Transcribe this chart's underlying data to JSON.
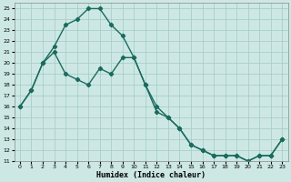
{
  "xlabel": "Humidex (Indice chaleur)",
  "bg_color": "#cde8e4",
  "grid_color": "#a8cec9",
  "line_color": "#1a6b5e",
  "xlim": [
    -0.5,
    23.5
  ],
  "ylim": [
    11,
    25.5
  ],
  "xticks": [
    0,
    1,
    2,
    3,
    4,
    5,
    6,
    7,
    8,
    9,
    10,
    11,
    12,
    13,
    14,
    15,
    16,
    17,
    18,
    19,
    20,
    21,
    22,
    23
  ],
  "yticks": [
    11,
    12,
    13,
    14,
    15,
    16,
    17,
    18,
    19,
    20,
    21,
    22,
    23,
    24,
    25
  ],
  "curve1_x": [
    0,
    1,
    2,
    3,
    4,
    5,
    6,
    7,
    8,
    9,
    10,
    11,
    12,
    13,
    14,
    15,
    16,
    17,
    18,
    19,
    20,
    21,
    22,
    23
  ],
  "curve1_y": [
    16,
    17.5,
    20,
    21.5,
    23.5,
    24,
    25,
    25,
    23.5,
    22.5,
    20.5,
    18,
    15.5,
    15,
    14,
    12.5,
    12,
    11.5,
    11.5,
    11.5,
    11,
    11.5,
    11.5,
    13
  ],
  "curve2_x": [
    0,
    1,
    2,
    3,
    4,
    5,
    6,
    7,
    8,
    9,
    10,
    11,
    12,
    13,
    14,
    15,
    16,
    17,
    18,
    19,
    20,
    21,
    22,
    23
  ],
  "curve2_y": [
    16,
    17.5,
    20,
    21,
    19,
    18.5,
    18,
    19.5,
    19,
    20.5,
    20.5,
    18,
    16,
    15,
    14,
    12.5,
    12,
    11.5,
    11.5,
    11.5,
    11,
    11.5,
    11.5,
    13
  ],
  "marker": "D",
  "markersize": 2.2,
  "linewidth": 1.0
}
